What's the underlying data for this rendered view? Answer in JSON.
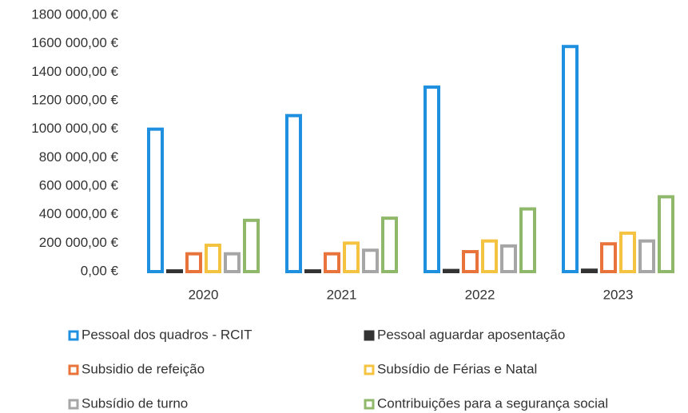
{
  "chart_data": {
    "type": "bar",
    "categories": [
      "2020",
      "2021",
      "2022",
      "2023"
    ],
    "series": [
      {
        "name": "Pessoal dos quadros - RCIT",
        "color": "#1f8fe0",
        "values": [
          1000000,
          1095000,
          1295000,
          1580000
        ]
      },
      {
        "name": "Pessoal aguardar aposentação",
        "color": "#333333",
        "values": [
          5000,
          5000,
          8000,
          10000
        ]
      },
      {
        "name": "Subsidio de refeição",
        "color": "#e8743b",
        "values": [
          125000,
          125000,
          140000,
          195000
        ]
      },
      {
        "name": "Subsídio de Férias e Natal",
        "color": "#f5c342",
        "values": [
          185000,
          200000,
          215000,
          270000
        ]
      },
      {
        "name": "Subsídio de turno",
        "color": "#a6a6a6",
        "values": [
          125000,
          150000,
          180000,
          215000
        ]
      },
      {
        "name": "Contribuições para a segurança social",
        "color": "#8fb86a",
        "values": [
          360000,
          375000,
          440000,
          525000
        ]
      }
    ],
    "ylim": [
      0,
      1800000
    ],
    "yticks": [
      {
        "value": 0,
        "label": "0,00 €"
      },
      {
        "value": 200000,
        "label": "200 000,00 €"
      },
      {
        "value": 400000,
        "label": "400 000,00 €"
      },
      {
        "value": 600000,
        "label": "600 000,00 €"
      },
      {
        "value": 800000,
        "label": "800 000,00 €"
      },
      {
        "value": 1000000,
        "label": "1000 000,00 €"
      },
      {
        "value": 1200000,
        "label": "1200 000,00 €"
      },
      {
        "value": 1400000,
        "label": "1400 000,00 €"
      },
      {
        "value": 1600000,
        "label": "1600 000,00 €"
      },
      {
        "value": 1800000,
        "label": "1800 000,00 €"
      }
    ],
    "grid": false,
    "legend": "bottom"
  }
}
